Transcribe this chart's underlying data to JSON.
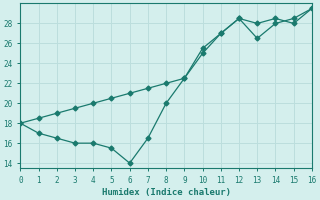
{
  "xlabel": "Humidex (Indice chaleur)",
  "background_color": "#d4efed",
  "grid_color": "#bcdedd",
  "line_color": "#1a7a6e",
  "x_line1": [
    0,
    1,
    2,
    3,
    4,
    5,
    6,
    7,
    8,
    9,
    10,
    11,
    12,
    13,
    14,
    15,
    16
  ],
  "y_line1": [
    18.0,
    17.0,
    16.5,
    16.0,
    16.0,
    15.5,
    14.0,
    16.5,
    20.0,
    22.5,
    25.5,
    27.0,
    28.5,
    28.0,
    28.5,
    28.0,
    29.5
  ],
  "x_line2": [
    0,
    1,
    2,
    3,
    4,
    5,
    6,
    7,
    8,
    9,
    10,
    11,
    12,
    13,
    14,
    15,
    16
  ],
  "y_line2": [
    18.0,
    18.5,
    19.0,
    19.5,
    20.0,
    20.5,
    21.0,
    21.5,
    22.0,
    22.5,
    25.0,
    27.0,
    28.5,
    26.5,
    28.0,
    28.5,
    29.5
  ],
  "xlim": [
    0,
    16
  ],
  "ylim": [
    13.5,
    30.0
  ],
  "yticks": [
    14,
    16,
    18,
    20,
    22,
    24,
    26,
    28
  ],
  "xticks": [
    0,
    1,
    2,
    3,
    4,
    5,
    6,
    7,
    8,
    9,
    10,
    11,
    12,
    13,
    14,
    15,
    16
  ]
}
